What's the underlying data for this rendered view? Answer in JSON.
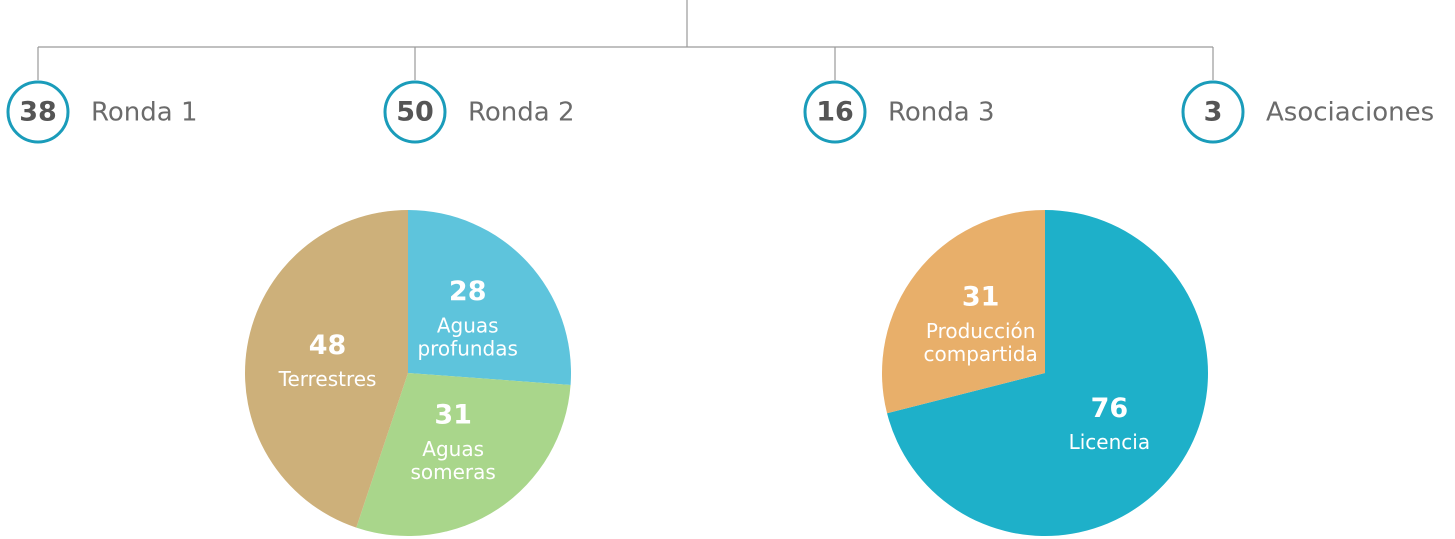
{
  "rounds": [
    {
      "value": 38,
      "label": "Ronda 1"
    },
    {
      "value": 50,
      "label": "Ronda 2"
    },
    {
      "value": 16,
      "label": "Ronda 3"
    },
    {
      "value": 3,
      "label": "Asociaciones"
    }
  ],
  "chart_data": [
    {
      "type": "pie",
      "categories": [
        "Aguas profundas",
        "Aguas someras",
        "Terrestres"
      ],
      "values": [
        28,
        31,
        48
      ],
      "colors": [
        "#5ec4dc",
        "#a9d68b",
        "#cdb07a"
      ]
    },
    {
      "type": "pie",
      "categories": [
        "Licencia",
        "Producción compartida"
      ],
      "values": [
        76,
        31
      ],
      "colors": [
        "#1eb0c9",
        "#e8af6a"
      ]
    }
  ]
}
